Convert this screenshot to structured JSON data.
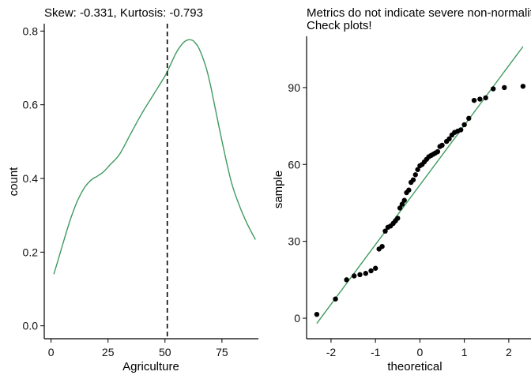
{
  "chart_data": [
    {
      "type": "line",
      "title": "Skew: -0.331, Kurtosis: -0.793",
      "xlabel": "Agriculture",
      "ylabel": "count",
      "xlim": [
        -3,
        91
      ],
      "ylim": [
        -0.035,
        0.82
      ],
      "xticks": [
        0,
        25,
        50,
        75
      ],
      "yticks": [
        0.0,
        0.2,
        0.4,
        0.6,
        0.8
      ],
      "ytick_labels": [
        "0.0",
        "0.2",
        "0.4",
        "0.6",
        "0.8"
      ],
      "grid": false,
      "line_color": "#3f9a5f",
      "vline": {
        "x": 51,
        "style": "dashed",
        "color": "#000000"
      },
      "series": [
        {
          "x": [
            1.2,
            3,
            5,
            8,
            10,
            12,
            15,
            18,
            20,
            23,
            26,
            30,
            35,
            40,
            45,
            50,
            52,
            55,
            58,
            60,
            62,
            63,
            65,
            68,
            70,
            72,
            75,
            78,
            80,
            83,
            86,
            89.7
          ],
          "values": [
            0.14,
            0.177,
            0.219,
            0.28,
            0.315,
            0.345,
            0.378,
            0.398,
            0.405,
            0.418,
            0.438,
            0.465,
            0.522,
            0.578,
            0.628,
            0.678,
            0.703,
            0.742,
            0.768,
            0.776,
            0.775,
            0.77,
            0.752,
            0.702,
            0.652,
            0.592,
            0.502,
            0.418,
            0.372,
            0.321,
            0.278,
            0.234
          ]
        }
      ]
    },
    {
      "type": "scatter",
      "title": "Metrics do not indicate severe non-normality.",
      "subtitle": "Check plots!",
      "xlabel": "theoretical",
      "ylabel": "sample",
      "xlim": [
        -2.55,
        2.5
      ],
      "ylim": [
        -8,
        110
      ],
      "xticks": [
        -2,
        -1,
        0,
        1,
        2
      ],
      "yticks": [
        0,
        30,
        60,
        90
      ],
      "grid": false,
      "point_color": "#000000",
      "reference_line": {
        "x": [
          -2.32,
          2.32
        ],
        "y": [
          -2,
          106
        ],
        "color": "#3f9a5f"
      },
      "points": {
        "x": [
          -2.32,
          -1.9,
          -1.65,
          -1.48,
          -1.35,
          -1.22,
          -1.1,
          -1.0,
          -0.92,
          -0.85,
          -0.78,
          -0.72,
          -0.66,
          -0.6,
          -0.55,
          -0.5,
          -0.45,
          -0.4,
          -0.35,
          -0.3,
          -0.25,
          -0.2,
          -0.15,
          -0.1,
          -0.05,
          0.0,
          0.05,
          0.1,
          0.15,
          0.2,
          0.25,
          0.3,
          0.35,
          0.4,
          0.45,
          0.5,
          0.6,
          0.66,
          0.72,
          0.78,
          0.85,
          0.92,
          1.0,
          1.1,
          1.22,
          1.35,
          1.48,
          1.65,
          1.9,
          2.32
        ],
        "y": [
          1.5,
          7.5,
          15,
          16.5,
          17,
          17.5,
          18.5,
          19.5,
          27,
          28,
          34,
          35.5,
          36,
          37,
          38,
          39,
          43,
          44.5,
          46,
          49,
          50,
          53,
          54,
          56,
          58,
          59.5,
          60,
          61,
          62,
          63,
          63.5,
          64,
          64.5,
          65,
          67,
          67.5,
          69,
          70,
          71.5,
          72.5,
          73,
          73.5,
          75.5,
          78,
          85,
          85.5,
          86,
          89.5,
          90,
          90.5
        ]
      }
    }
  ]
}
